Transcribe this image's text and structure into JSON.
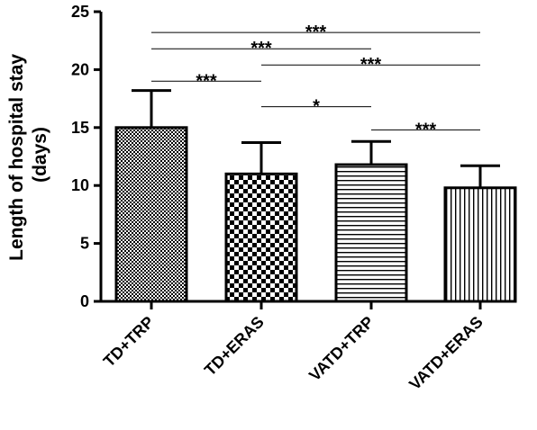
{
  "chart_data": {
    "type": "bar",
    "title": "",
    "xlabel": "",
    "ylabel_lines": [
      "Length of hospital stay",
      "(days)"
    ],
    "ylim": [
      0,
      25
    ],
    "yticks": [
      0,
      5,
      10,
      15,
      20,
      25
    ],
    "grid": false,
    "categories": [
      "TD+TRP",
      "TD+ERAS",
      "VATD+TRP",
      "VATD+ERAS"
    ],
    "values": [
      15.0,
      11.0,
      11.8,
      9.8
    ],
    "errors": [
      3.2,
      2.7,
      2.0,
      1.9
    ],
    "patterns": [
      "fine-check",
      "coarse-check",
      "horizontal-lines",
      "vertical-lines"
    ],
    "significance": [
      {
        "from": 0,
        "to": 1,
        "y": 19.0,
        "label": "***"
      },
      {
        "from": 1,
        "to": 2,
        "y": 16.8,
        "label": "*"
      },
      {
        "from": 2,
        "to": 3,
        "y": 14.8,
        "label": "***"
      },
      {
        "from": 1,
        "to": 3,
        "y": 20.4,
        "label": "***"
      },
      {
        "from": 0,
        "to": 2,
        "y": 21.8,
        "label": "***"
      },
      {
        "from": 0,
        "to": 3,
        "y": 23.2,
        "label": "***"
      }
    ]
  }
}
